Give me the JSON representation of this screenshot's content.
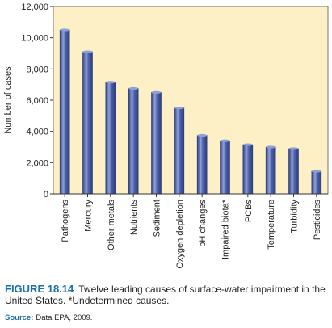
{
  "chart_data": {
    "type": "bar",
    "categories": [
      "Pathogens",
      "Mercury",
      "Other metals",
      "Nutrients",
      "Sediment",
      "Oxygen depletion",
      "pH changes",
      "Impaired biota*",
      "PCBs",
      "Temperature",
      "Turbidity",
      "Pesticides"
    ],
    "values": [
      10500,
      9100,
      7150,
      6750,
      6500,
      5500,
      3750,
      3400,
      3150,
      3000,
      2900,
      1450
    ],
    "ylabel": "Number of cases",
    "ylim": [
      0,
      12000
    ],
    "yticks": [
      "0",
      "2,000",
      "4,000",
      "6,000",
      "8,000",
      "10,000",
      "12,000"
    ],
    "ytick_values": [
      0,
      2000,
      4000,
      6000,
      8000,
      10000,
      12000
    ],
    "grid": false,
    "colors": {
      "plot_bg": "#fdf0c6",
      "bar_fill": "#4a5fa8",
      "bar_dark": "#2f3f80",
      "bar_light": "#8ea0d8"
    }
  },
  "caption": {
    "figure_id": "FIGURE 18.14",
    "text": "Twelve leading causes of surface-water impairment in the United States. *Undetermined causes.",
    "source_label": "Source:",
    "source_text": "Data EPA, 2009."
  }
}
